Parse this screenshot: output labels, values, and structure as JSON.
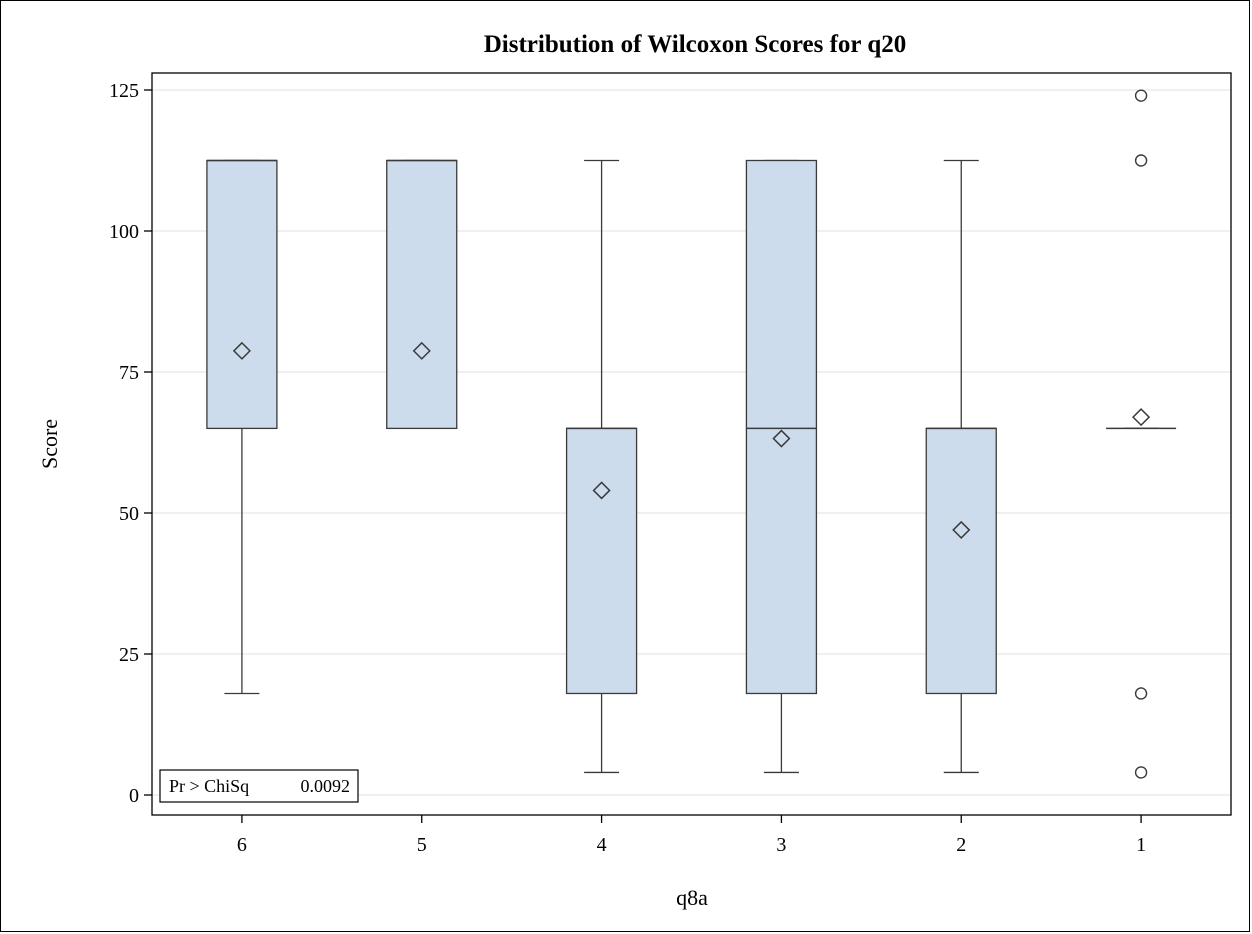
{
  "chart_data": {
    "type": "box",
    "title": "Distribution of Wilcoxon Scores for q20",
    "xlabel": "q8a",
    "ylabel": "Score",
    "ylim": [
      0,
      125
    ],
    "yticks": [
      0,
      25,
      50,
      75,
      100,
      125
    ],
    "grid": "horizontal",
    "categories": [
      "6",
      "5",
      "4",
      "3",
      "2",
      "1"
    ],
    "boxes": [
      {
        "category": "6",
        "whisker_low": 18,
        "q1": 65,
        "median": 112.5,
        "q3": 112.5,
        "whisker_high": 112.5,
        "mean": 78.75,
        "outliers": []
      },
      {
        "category": "5",
        "whisker_low": 65,
        "q1": 65,
        "median": 112.5,
        "q3": 112.5,
        "whisker_high": 112.5,
        "mean": 78.75,
        "outliers": []
      },
      {
        "category": "4",
        "whisker_low": 4,
        "q1": 18,
        "median": 65,
        "q3": 65,
        "whisker_high": 112.5,
        "mean": 54,
        "outliers": []
      },
      {
        "category": "3",
        "whisker_low": 4,
        "q1": 18,
        "median": 65,
        "q3": 112.5,
        "whisker_high": 112.5,
        "mean": 63.2,
        "outliers": []
      },
      {
        "category": "2",
        "whisker_low": 4,
        "q1": 18,
        "median": 65,
        "q3": 65,
        "whisker_high": 112.5,
        "mean": 47,
        "outliers": []
      },
      {
        "category": "1",
        "whisker_low": 65,
        "q1": 65,
        "median": 65,
        "q3": 65,
        "whisker_high": 65,
        "mean": 67,
        "outliers": [
          124,
          112.5,
          18,
          4
        ]
      }
    ],
    "inset": {
      "label": "Pr > ChiSq",
      "value": "0.0092",
      "position": "bottom-left"
    },
    "colors": {
      "box_fill": "#cddcec",
      "box_stroke": "#3a3a3a",
      "grid": "#e6e6e6"
    }
  }
}
